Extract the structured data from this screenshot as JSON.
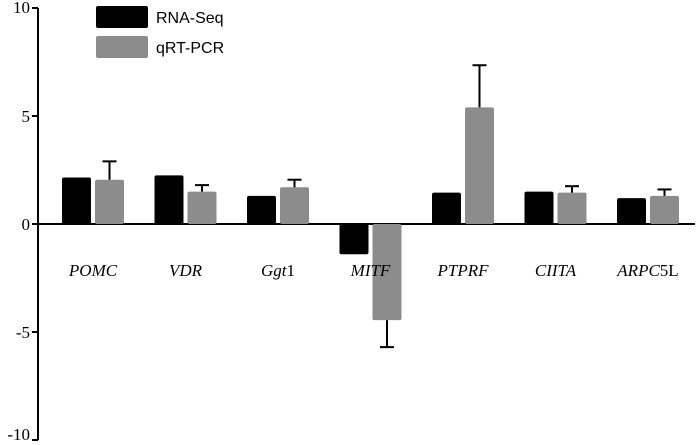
{
  "chart_data": {
    "type": "bar",
    "categories": [
      {
        "italic": "POMC",
        "suffix": ""
      },
      {
        "italic": "VDR",
        "suffix": ""
      },
      {
        "italic": "Ggt",
        "suffix": "1"
      },
      {
        "italic": "MITF",
        "suffix": ""
      },
      {
        "italic": "PTPRF",
        "suffix": ""
      },
      {
        "italic": "CIITA",
        "suffix": ""
      },
      {
        "italic": "ARPC",
        "suffix": "5L"
      }
    ],
    "series": [
      {
        "name": "RNA-Seq",
        "color": "#000000",
        "values": [
          2.15,
          2.25,
          1.3,
          -1.4,
          1.45,
          1.5,
          1.2
        ],
        "errors": [
          0,
          0,
          0,
          0,
          0,
          0,
          0
        ]
      },
      {
        "name": "qRT-PCR",
        "color": "#8c8c8c",
        "values": [
          2.05,
          1.5,
          1.7,
          -4.45,
          5.4,
          1.45,
          1.3
        ],
        "errors": [
          0.85,
          0.3,
          0.35,
          1.25,
          1.95,
          0.3,
          0.3
        ]
      }
    ],
    "ylim": [
      -10,
      10
    ],
    "yticks": [
      10,
      5,
      0,
      -5,
      -10
    ],
    "yticklabels": [
      "10",
      "5",
      "0",
      "-5",
      "-10"
    ],
    "legend_position": "top-left",
    "grid": false
  }
}
